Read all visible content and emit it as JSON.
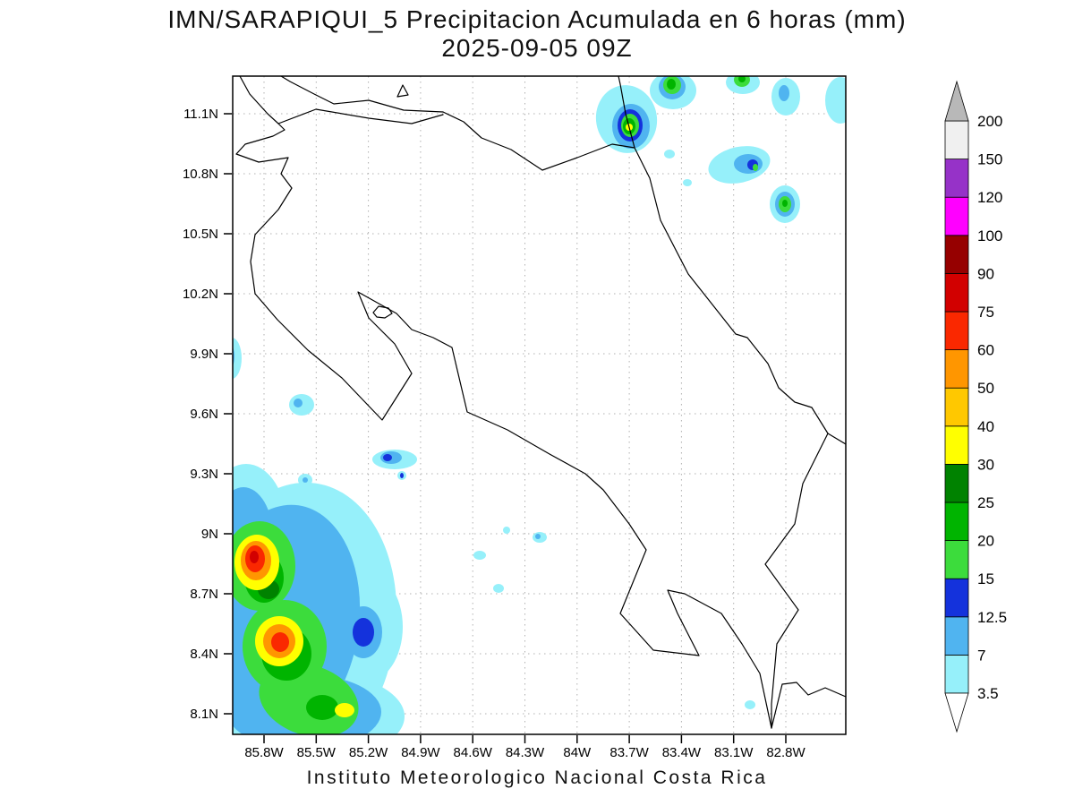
{
  "title": {
    "line1": "IMN/SARAPIQUI_5 Precipitacion Acumulada en 6 horas (mm)",
    "line2": "2025-09-05 09Z"
  },
  "footer": "Instituto Meteorologico Nacional Costa Rica",
  "axes": {
    "lat_ticks": [
      "8.1N",
      "8.4N",
      "8.7N",
      "9N",
      "9.3N",
      "9.6N",
      "9.9N",
      "10.2N",
      "10.5N",
      "10.8N",
      "11.1N"
    ],
    "lon_ticks": [
      "85.8W",
      "85.5W",
      "85.2W",
      "84.9W",
      "84.6W",
      "84.3W",
      "84W",
      "83.7W",
      "83.4W",
      "83.1W",
      "82.8W"
    ]
  },
  "chart_data": {
    "type": "map-filled-contour",
    "title": "IMN/SARAPIQUI_5 Precipitacion Acumulada en 6 horas (mm)",
    "valid_time": "2025-09-05 09Z",
    "units": "mm",
    "region": {
      "lon_range": [
        "85.8W",
        "82.8W"
      ],
      "lat_range": [
        "8.1N",
        "11.1N"
      ]
    },
    "levels": [
      3.5,
      7,
      12.5,
      15,
      20,
      25,
      30,
      40,
      50,
      60,
      75,
      90,
      100,
      120,
      150,
      200
    ],
    "palette": [
      "#96f0fa",
      "#50b4f0",
      "#1432dc",
      "#3cdc3c",
      "#00b400",
      "#008200",
      "#ffff00",
      "#ffc800",
      "#ff9600",
      "#fa2800",
      "#d20000",
      "#960000",
      "#ff00ff",
      "#9632c8",
      "#f0f0f0"
    ],
    "under_color": "#ffffff",
    "over_color": "#b8b8b8",
    "legend_position": "right",
    "grid": true,
    "cells": [
      [
        3.5,
        752,
        101,
        26,
        21,
        0
      ],
      [
        7,
        751,
        97,
        15,
        14,
        0
      ],
      [
        15,
        751,
        95,
        10,
        10,
        0
      ],
      [
        20,
        750,
        94,
        5,
        6,
        0
      ],
      [
        3.5,
        700,
        133,
        34,
        38,
        -10
      ],
      [
        7,
        705,
        141,
        21,
        25,
        0
      ],
      [
        12.5,
        704,
        140,
        14,
        18,
        0
      ],
      [
        15,
        704,
        140,
        10,
        13,
        0
      ],
      [
        20,
        703,
        141,
        7,
        9,
        0
      ],
      [
        30,
        703,
        142,
        4,
        4,
        0
      ],
      [
        3.5,
        830,
        92,
        19,
        13,
        0
      ],
      [
        15,
        829,
        89,
        9,
        8,
        0
      ],
      [
        20,
        829,
        88,
        4,
        4,
        0
      ],
      [
        3.5,
        878,
        108,
        16,
        21,
        0
      ],
      [
        7,
        876,
        104,
        6,
        9,
        0
      ],
      [
        3.5,
        939,
        112,
        17,
        26,
        0
      ],
      [
        3.5,
        826,
        184,
        35,
        20,
        -12
      ],
      [
        7,
        836,
        183,
        16,
        11,
        0
      ],
      [
        12.5,
        841,
        184,
        6,
        6,
        0
      ],
      [
        15,
        844,
        187,
        3,
        4,
        0
      ],
      [
        3.5,
        877,
        228,
        17,
        21,
        0
      ],
      [
        7,
        877,
        228,
        11,
        14,
        0
      ],
      [
        15,
        877,
        228,
        7,
        9,
        0
      ],
      [
        20,
        877,
        227,
        3,
        4,
        0
      ],
      [
        3.5,
        748,
        172,
        6,
        5,
        0
      ],
      [
        3.5,
        768,
        204,
        5,
        4,
        0
      ],
      [
        3.5,
        259,
        400,
        11,
        23,
        0
      ],
      [
        7,
        257,
        398,
        5,
        13,
        0
      ],
      [
        3.5,
        337,
        452,
        14,
        12,
        0
      ],
      [
        7,
        333,
        450,
        5,
        5,
        0
      ],
      [
        3.5,
        341,
        536,
        8,
        7,
        0
      ],
      [
        7,
        341,
        536,
        3,
        3,
        0
      ],
      [
        3.5,
        441,
        513,
        25,
        11,
        0
      ],
      [
        7,
        437,
        511,
        12,
        7,
        0
      ],
      [
        12.5,
        433,
        511,
        5,
        4,
        0
      ],
      [
        3.5,
        449,
        531,
        5,
        5,
        0
      ],
      [
        12.5,
        449,
        531,
        2,
        3,
        0
      ],
      [
        3.5,
        536,
        620,
        7,
        5,
        0
      ],
      [
        3.5,
        557,
        657,
        6,
        5,
        0
      ],
      [
        3.5,
        566,
        592,
        4,
        4,
        0
      ],
      [
        3.5,
        603,
        600,
        8,
        6,
        0
      ],
      [
        7,
        601,
        599,
        3,
        3,
        0
      ],
      [
        3.5,
        330,
        700,
        112,
        162,
        8
      ],
      [
        3.5,
        275,
        590,
        46,
        72,
        0
      ],
      [
        3.5,
        408,
        700,
        42,
        62,
        0
      ],
      [
        3.5,
        340,
        800,
        112,
        52,
        0
      ],
      [
        7,
        315,
        695,
        86,
        132,
        8
      ],
      [
        7,
        272,
        600,
        33,
        56,
        0
      ],
      [
        7,
        340,
        795,
        86,
        42,
        0
      ],
      [
        7,
        406,
        706,
        21,
        29,
        0
      ],
      [
        15,
        290,
        632,
        40,
        50,
        0
      ],
      [
        15,
        318,
        722,
        47,
        52,
        0
      ],
      [
        15,
        345,
        782,
        57,
        39,
        18
      ],
      [
        20,
        295,
        645,
        22,
        28,
        0
      ],
      [
        20,
        320,
        730,
        28,
        30,
        0
      ],
      [
        20,
        360,
        790,
        18,
        14,
        0
      ],
      [
        25,
        300,
        658,
        12,
        11,
        0
      ],
      [
        30,
        287,
        628,
        25,
        31,
        0
      ],
      [
        50,
        286,
        626,
        17,
        22,
        0
      ],
      [
        60,
        285,
        624,
        11,
        15,
        0
      ],
      [
        75,
        284,
        622,
        5,
        7,
        0
      ],
      [
        30,
        312,
        716,
        27,
        28,
        0
      ],
      [
        50,
        312,
        716,
        18,
        19,
        0
      ],
      [
        60,
        313,
        717,
        10,
        11,
        0
      ],
      [
        30,
        385,
        793,
        11,
        8,
        0
      ],
      [
        12.5,
        406,
        706,
        12,
        16,
        0
      ],
      [
        3.5,
        838,
        787,
        6,
        5,
        0
      ]
    ]
  }
}
